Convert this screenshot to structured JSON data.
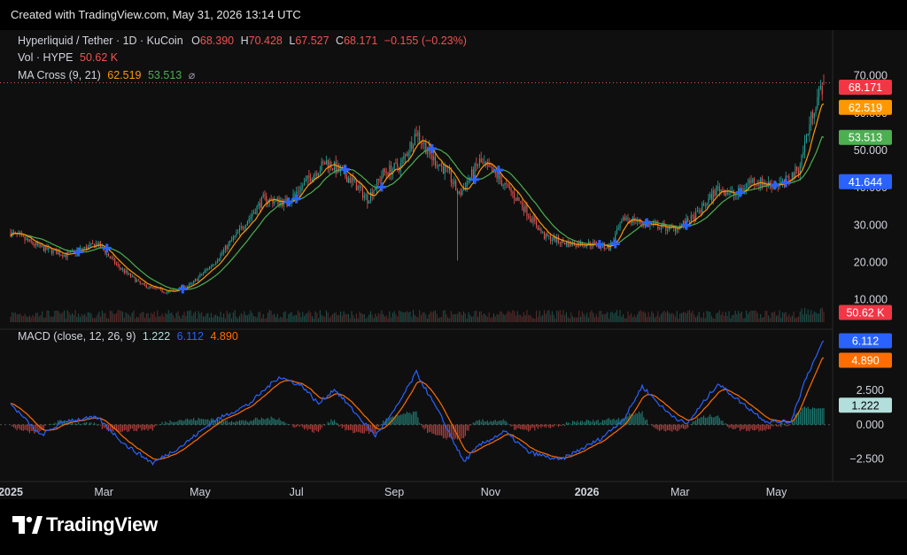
{
  "header": {
    "created_text": "Created with TradingView.com, May 31, 2026 13:14 UTC"
  },
  "legend": {
    "symbol": "Hyperliquid / Tether · 1D · KuCoin",
    "o_label": "O",
    "o": "68.390",
    "h_label": "H",
    "h": "70.428",
    "l_label": "L",
    "l": "67.527",
    "c_label": "C",
    "c": "68.171",
    "change": "−0.155 (−0.23%)",
    "vol_label": "Vol · HYPE",
    "vol": "50.62 K",
    "ma_label": "MA Cross (9, 21)",
    "ma_fast": "62.519",
    "ma_slow": "53.513",
    "ma_eye": "⌀",
    "macd_label": "MACD (close, 12, 26, 9)",
    "macd_hist": "1.222",
    "macd_line": "6.112",
    "macd_signal": "4.890"
  },
  "colors": {
    "up": "#26a69a",
    "down": "#ef5350",
    "ma_fast": "#ff9800",
    "ma_slow": "#4caf50",
    "macd": "#2962ff",
    "signal": "#ff6d00",
    "cross": "#2962ff"
  },
  "price_badges": {
    "last": "68.171",
    "ma_fast": "62.519",
    "ma_slow": "53.513",
    "cursor": "41.644",
    "vol": "50.62 K"
  },
  "macd_badges": {
    "macd": "6.112",
    "signal": "4.890",
    "hist": "1.222"
  },
  "brand": {
    "name": "TradingView"
  },
  "chart_data": {
    "type": "candlestick",
    "title": "Hyperliquid / Tether · 1D · KuCoin",
    "price_axis": {
      "ticks": [
        "10.000",
        "20.000",
        "30.000",
        "40.000",
        "50.000",
        "60.000",
        "70.000"
      ],
      "ylim": [
        4,
        78
      ]
    },
    "macd_axis": {
      "ticks": [
        "−2.500",
        "0.000",
        "2.500"
      ],
      "ylim": [
        -3.5,
        6.5
      ]
    },
    "x_ticks": [
      "2025",
      "Mar",
      "May",
      "Jul",
      "Sep",
      "Nov",
      "2026",
      "Mar",
      "May"
    ],
    "x_range": [
      "2025-01-01",
      "2026-05-31"
    ],
    "price_keypoints": [
      [
        "2025-01-01",
        28
      ],
      [
        "2025-01-20",
        24
      ],
      [
        "2025-02-05",
        22
      ],
      [
        "2025-02-25",
        25
      ],
      [
        "2025-03-10",
        19
      ],
      [
        "2025-03-25",
        14
      ],
      [
        "2025-04-10",
        12
      ],
      [
        "2025-04-25",
        14
      ],
      [
        "2025-05-10",
        20
      ],
      [
        "2025-05-25",
        28
      ],
      [
        "2025-06-10",
        37
      ],
      [
        "2025-06-25",
        36
      ],
      [
        "2025-07-10",
        43
      ],
      [
        "2025-07-20",
        47
      ],
      [
        "2025-08-05",
        42
      ],
      [
        "2025-08-15",
        37
      ],
      [
        "2025-08-25",
        44
      ],
      [
        "2025-09-05",
        46
      ],
      [
        "2025-09-15",
        55
      ],
      [
        "2025-09-25",
        48
      ],
      [
        "2025-10-05",
        44
      ],
      [
        "2025-10-12",
        38
      ],
      [
        "2025-10-25",
        47
      ],
      [
        "2025-11-05",
        43
      ],
      [
        "2025-11-20",
        36
      ],
      [
        "2025-12-05",
        27
      ],
      [
        "2025-12-20",
        25
      ],
      [
        "2026-01-05",
        25
      ],
      [
        "2026-01-15",
        24
      ],
      [
        "2026-01-25",
        32
      ],
      [
        "2026-02-10",
        30
      ],
      [
        "2026-02-25",
        29
      ],
      [
        "2026-03-10",
        32
      ],
      [
        "2026-03-25",
        40
      ],
      [
        "2026-04-05",
        38
      ],
      [
        "2026-04-15",
        42
      ],
      [
        "2026-04-25",
        41
      ],
      [
        "2026-05-05",
        41
      ],
      [
        "2026-05-15",
        45
      ],
      [
        "2026-05-25",
        62
      ],
      [
        "2026-05-31",
        68.171
      ]
    ],
    "macd_keypoints": [
      [
        "2025-01-01",
        1.5
      ],
      [
        "2025-01-20",
        -0.8
      ],
      [
        "2025-02-05",
        0.3
      ],
      [
        "2025-02-25",
        0.5
      ],
      [
        "2025-03-15",
        -1.5
      ],
      [
        "2025-04-01",
        -2.8
      ],
      [
        "2025-04-20",
        -1.5
      ],
      [
        "2025-05-10",
        0.3
      ],
      [
        "2025-06-01",
        1.5
      ],
      [
        "2025-06-20",
        3.5
      ],
      [
        "2025-07-05",
        2.8
      ],
      [
        "2025-07-15",
        1.5
      ],
      [
        "2025-07-25",
        2.6
      ],
      [
        "2025-08-10",
        0.5
      ],
      [
        "2025-08-20",
        -0.8
      ],
      [
        "2025-09-01",
        1.0
      ],
      [
        "2025-09-15",
        3.8
      ],
      [
        "2025-10-01",
        0.5
      ],
      [
        "2025-10-15",
        -2.7
      ],
      [
        "2025-10-25",
        -1.5
      ],
      [
        "2025-11-10",
        -0.5
      ],
      [
        "2025-11-25",
        -2.0
      ],
      [
        "2025-12-15",
        -2.6
      ],
      [
        "2026-01-10",
        -1.0
      ],
      [
        "2026-01-25",
        0.5
      ],
      [
        "2026-02-05",
        2.8
      ],
      [
        "2026-02-20",
        1.0
      ],
      [
        "2026-03-05",
        0.0
      ],
      [
        "2026-03-25",
        3.0
      ],
      [
        "2026-04-10",
        1.5
      ],
      [
        "2026-04-25",
        0.2
      ],
      [
        "2026-05-10",
        0.2
      ],
      [
        "2026-05-20",
        3.5
      ],
      [
        "2026-05-31",
        6.112
      ]
    ],
    "series": [
      {
        "name": "MA Cross (9, 21)",
        "last": 62.519
      },
      {
        "name": "MA Cross (9, 21)",
        "last": 53.513
      },
      {
        "name": "MACD (close, 12, 26, 9)",
        "last": 6.112
      },
      {
        "name": "MACD (close, 12, 26, 9)",
        "last": 4.89
      }
    ],
    "last": {
      "open": 68.39,
      "high": 70.428,
      "low": 67.527,
      "close": 68.171,
      "volume": "50.62 K"
    }
  }
}
